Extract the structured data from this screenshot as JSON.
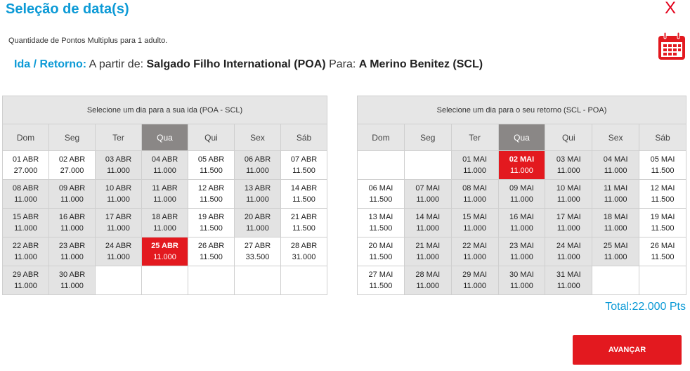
{
  "header": {
    "title": "Seleção de data(s)",
    "close_label": "X"
  },
  "subtitle": "Quantidade de Pontos Multiplus para 1 adulto.",
  "route": {
    "label": "Ida / Retorno:",
    "from_prefix": "A partir de:",
    "from": "Salgado Filho International (POA)",
    "to_prefix": "Para:",
    "to": "A Merino Benitez (SCL)"
  },
  "weekdays": [
    "Dom",
    "Seg",
    "Ter",
    "Qua",
    "Qui",
    "Sex",
    "Sáb"
  ],
  "calendars": [
    {
      "id": "ida",
      "title": "Selecione um dia para a sua ida (POA - SCL)",
      "highlight_col": 3,
      "weeks": [
        [
          {
            "d": "01 ABR",
            "p": "27.000",
            "s": "white"
          },
          {
            "d": "02 ABR",
            "p": "27.000",
            "s": "white"
          },
          {
            "d": "03 ABR",
            "p": "11.000",
            "s": "gray"
          },
          {
            "d": "04 ABR",
            "p": "11.000",
            "s": "gray"
          },
          {
            "d": "05 ABR",
            "p": "11.500",
            "s": "white"
          },
          {
            "d": "06 ABR",
            "p": "11.000",
            "s": "gray"
          },
          {
            "d": "07 ABR",
            "p": "11.500",
            "s": "white"
          }
        ],
        [
          {
            "d": "08 ABR",
            "p": "11.000",
            "s": "gray"
          },
          {
            "d": "09 ABR",
            "p": "11.000",
            "s": "gray"
          },
          {
            "d": "10 ABR",
            "p": "11.000",
            "s": "gray"
          },
          {
            "d": "11 ABR",
            "p": "11.000",
            "s": "gray"
          },
          {
            "d": "12 ABR",
            "p": "11.500",
            "s": "white"
          },
          {
            "d": "13 ABR",
            "p": "11.000",
            "s": "gray"
          },
          {
            "d": "14 ABR",
            "p": "11.500",
            "s": "white"
          }
        ],
        [
          {
            "d": "15 ABR",
            "p": "11.000",
            "s": "gray"
          },
          {
            "d": "16 ABR",
            "p": "11.000",
            "s": "gray"
          },
          {
            "d": "17 ABR",
            "p": "11.000",
            "s": "gray"
          },
          {
            "d": "18 ABR",
            "p": "11.000",
            "s": "gray"
          },
          {
            "d": "19 ABR",
            "p": "11.500",
            "s": "white"
          },
          {
            "d": "20 ABR",
            "p": "11.000",
            "s": "gray"
          },
          {
            "d": "21 ABR",
            "p": "11.500",
            "s": "white"
          }
        ],
        [
          {
            "d": "22 ABR",
            "p": "11.000",
            "s": "gray"
          },
          {
            "d": "23 ABR",
            "p": "11.000",
            "s": "gray"
          },
          {
            "d": "24 ABR",
            "p": "11.000",
            "s": "gray"
          },
          {
            "d": "25 ABR",
            "p": "11.000",
            "s": "red"
          },
          {
            "d": "26 ABR",
            "p": "11.500",
            "s": "white"
          },
          {
            "d": "27 ABR",
            "p": "33.500",
            "s": "white"
          },
          {
            "d": "28 ABR",
            "p": "31.000",
            "s": "white"
          }
        ],
        [
          {
            "d": "29 ABR",
            "p": "11.000",
            "s": "gray"
          },
          {
            "d": "30 ABR",
            "p": "11.000",
            "s": "gray"
          },
          {
            "s": "empty"
          },
          {
            "s": "empty"
          },
          {
            "s": "empty"
          },
          {
            "s": "empty"
          },
          {
            "s": "empty"
          }
        ]
      ]
    },
    {
      "id": "ret",
      "title": "Selecione um dia para o seu retorno (SCL - POA)",
      "highlight_col": 3,
      "weeks": [
        [
          {
            "s": "empty"
          },
          {
            "s": "empty"
          },
          {
            "d": "01 MAI",
            "p": "11.000",
            "s": "gray"
          },
          {
            "d": "02 MAI",
            "p": "11.000",
            "s": "red"
          },
          {
            "d": "03 MAI",
            "p": "11.000",
            "s": "gray"
          },
          {
            "d": "04 MAI",
            "p": "11.000",
            "s": "gray"
          },
          {
            "d": "05 MAI",
            "p": "11.500",
            "s": "white"
          }
        ],
        [
          {
            "d": "06 MAI",
            "p": "11.500",
            "s": "white"
          },
          {
            "d": "07 MAI",
            "p": "11.000",
            "s": "gray"
          },
          {
            "d": "08 MAI",
            "p": "11.000",
            "s": "gray"
          },
          {
            "d": "09 MAI",
            "p": "11.000",
            "s": "gray"
          },
          {
            "d": "10 MAI",
            "p": "11.000",
            "s": "gray"
          },
          {
            "d": "11 MAI",
            "p": "11.000",
            "s": "gray"
          },
          {
            "d": "12 MAI",
            "p": "11.500",
            "s": "white"
          }
        ],
        [
          {
            "d": "13 MAI",
            "p": "11.500",
            "s": "white"
          },
          {
            "d": "14 MAI",
            "p": "11.000",
            "s": "gray"
          },
          {
            "d": "15 MAI",
            "p": "11.000",
            "s": "gray"
          },
          {
            "d": "16 MAI",
            "p": "11.000",
            "s": "gray"
          },
          {
            "d": "17 MAI",
            "p": "11.000",
            "s": "gray"
          },
          {
            "d": "18 MAI",
            "p": "11.000",
            "s": "gray"
          },
          {
            "d": "19 MAI",
            "p": "11.500",
            "s": "white"
          }
        ],
        [
          {
            "d": "20 MAI",
            "p": "11.500",
            "s": "white"
          },
          {
            "d": "21 MAI",
            "p": "11.000",
            "s": "gray"
          },
          {
            "d": "22 MAI",
            "p": "11.000",
            "s": "gray"
          },
          {
            "d": "23 MAI",
            "p": "11.000",
            "s": "gray"
          },
          {
            "d": "24 MAI",
            "p": "11.000",
            "s": "gray"
          },
          {
            "d": "25 MAI",
            "p": "11.000",
            "s": "gray"
          },
          {
            "d": "26 MAI",
            "p": "11.500",
            "s": "white"
          }
        ],
        [
          {
            "d": "27 MAI",
            "p": "11.500",
            "s": "white"
          },
          {
            "d": "28 MAI",
            "p": "11.000",
            "s": "gray"
          },
          {
            "d": "29 MAI",
            "p": "11.000",
            "s": "gray"
          },
          {
            "d": "30 MAI",
            "p": "11.000",
            "s": "gray"
          },
          {
            "d": "31 MAI",
            "p": "11.000",
            "s": "gray"
          },
          {
            "s": "empty"
          },
          {
            "s": "empty"
          }
        ]
      ]
    }
  ],
  "total": "Total:22.000 Pts",
  "continue_button": "AVANÇAR",
  "colors": {
    "accent": "#0c9ad6",
    "selected": "#e3191f",
    "available_gray": "#e3e3e3",
    "weekday_highlight": "#8a8786"
  },
  "icons": {
    "close": "close-icon",
    "calendar": "calendar-icon"
  }
}
